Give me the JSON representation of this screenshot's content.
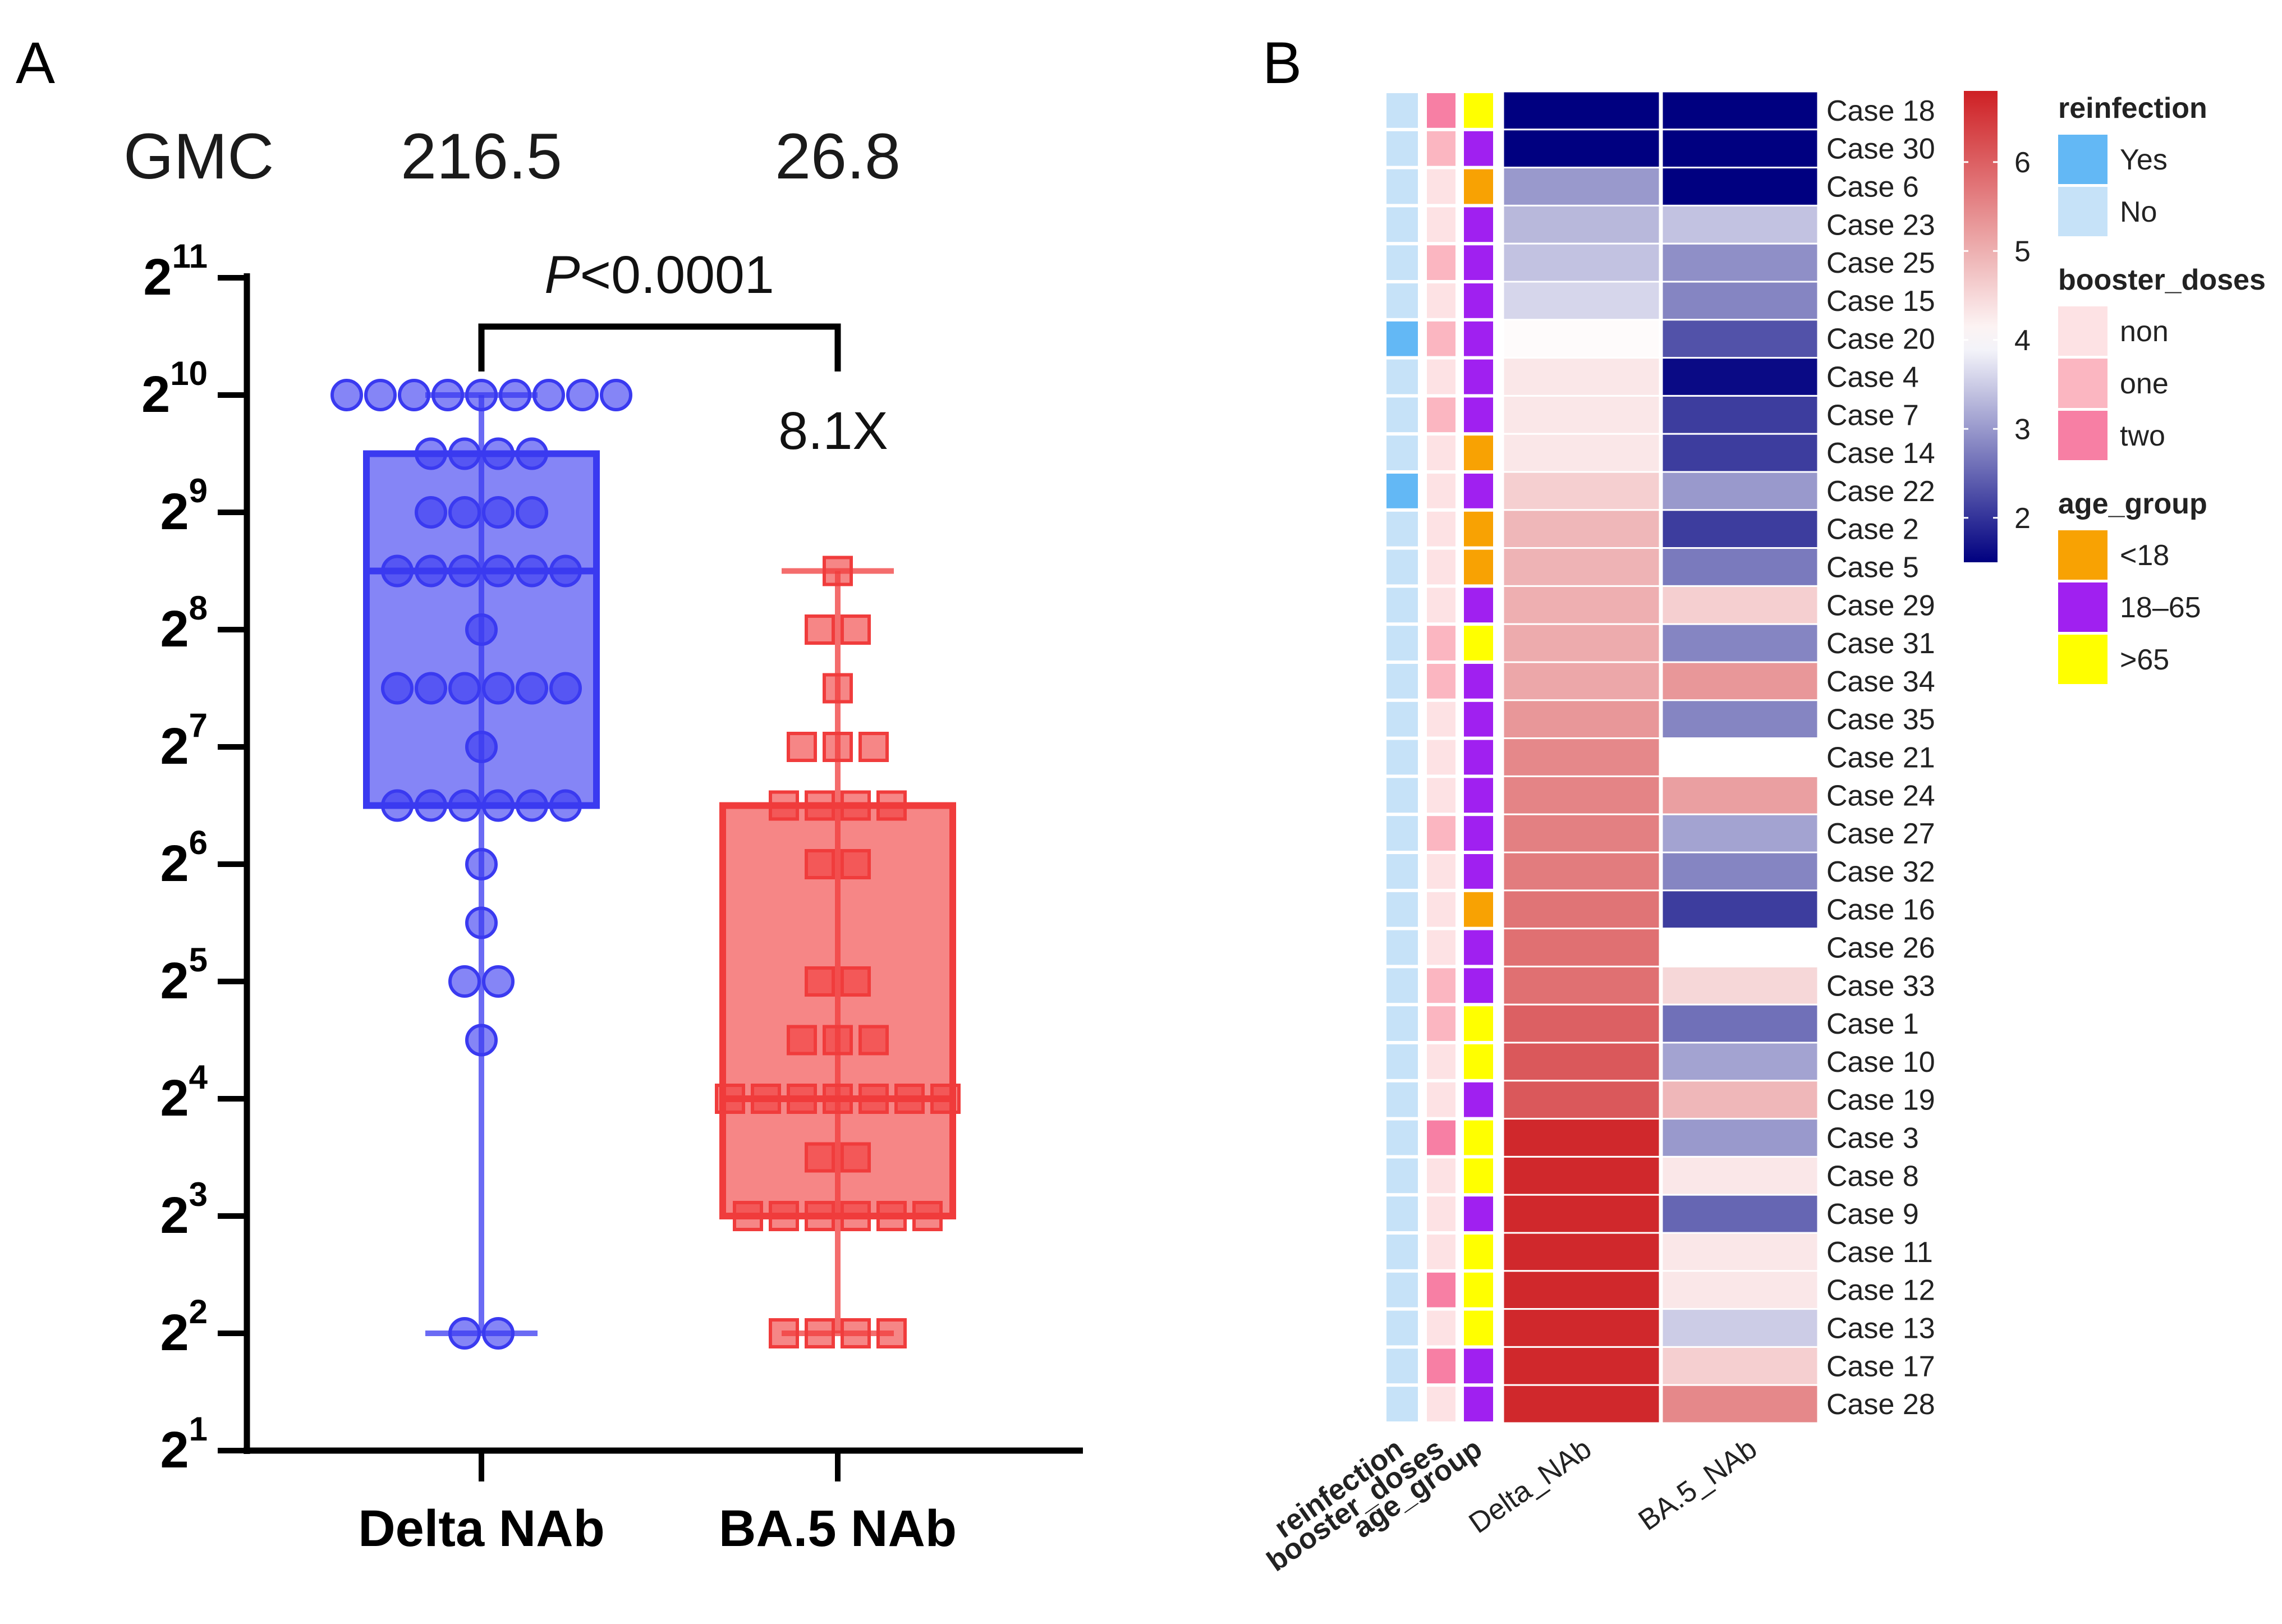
{
  "chart_data": [
    {
      "panel": "A",
      "type": "scatter",
      "subtype": "box-with-points",
      "y_scale": "log2",
      "ylim_exp": [
        1,
        11
      ],
      "y_ticks": [
        {
          "base": "2",
          "exp": "1"
        },
        {
          "base": "2",
          "exp": "2"
        },
        {
          "base": "2",
          "exp": "3"
        },
        {
          "base": "2",
          "exp": "4"
        },
        {
          "base": "2",
          "exp": "5"
        },
        {
          "base": "2",
          "exp": "6"
        },
        {
          "base": "2",
          "exp": "7"
        },
        {
          "base": "2",
          "exp": "8"
        },
        {
          "base": "2",
          "exp": "9"
        },
        {
          "base": "2",
          "exp": "10"
        },
        {
          "base": "2",
          "exp": "11"
        }
      ],
      "gmc_label": "GMC",
      "comparison": {
        "p_italic": "P",
        "p_rest": "<0.0001",
        "fold": "8.1X"
      },
      "series": [
        {
          "name": "Delta NAb",
          "gmc": "216.5",
          "color": "#3a3af0",
          "marker": "circle",
          "box_exp": {
            "min": 2,
            "q1": 6.5,
            "median": 8.5,
            "q3": 9.5,
            "max": 10
          },
          "points_exp": [
            [
              10,
              9
            ],
            [
              9.5,
              4
            ],
            [
              9,
              4
            ],
            [
              8.5,
              6
            ],
            [
              8,
              1
            ],
            [
              7.5,
              6
            ],
            [
              7,
              1
            ],
            [
              6.5,
              6
            ],
            [
              6,
              1
            ],
            [
              5.5,
              1
            ],
            [
              5,
              2
            ],
            [
              4.5,
              1
            ],
            [
              2,
              2
            ]
          ]
        },
        {
          "name": "BA.5 NAb",
          "gmc": "26.8",
          "color": "#f03c3c",
          "marker": "square",
          "box_exp": {
            "min": 2,
            "q1": 3,
            "median": 4,
            "q3": 6.5,
            "max": 8.5
          },
          "points_exp": [
            [
              8.5,
              1
            ],
            [
              8,
              2
            ],
            [
              7.5,
              1
            ],
            [
              7,
              3
            ],
            [
              6.5,
              4
            ],
            [
              6,
              2
            ],
            [
              5,
              2
            ],
            [
              4.5,
              3
            ],
            [
              4,
              7
            ],
            [
              3.5,
              2
            ],
            [
              3,
              6
            ],
            [
              2,
              4
            ]
          ]
        }
      ]
    },
    {
      "panel": "B",
      "type": "heatmap",
      "rows": [
        "Case 18",
        "Case 30",
        "Case 6",
        "Case 23",
        "Case 25",
        "Case 15",
        "Case 20",
        "Case 4",
        "Case 7",
        "Case 14",
        "Case 22",
        "Case 2",
        "Case 5",
        "Case 29",
        "Case 31",
        "Case 34",
        "Case 35",
        "Case 21",
        "Case 24",
        "Case 27",
        "Case 32",
        "Case 16",
        "Case 26",
        "Case 33",
        "Case 1",
        "Case 10",
        "Case 19",
        "Case 3",
        "Case 8",
        "Case 9",
        "Case 11",
        "Case 12",
        "Case 13",
        "Case 17",
        "Case 28"
      ],
      "annotation_columns": [
        "reinfection",
        "booster_doses",
        "age_group"
      ],
      "value_columns": [
        "Delta_NAb",
        "BA.5_NAb"
      ],
      "reinfection": [
        "No",
        "No",
        "No",
        "No",
        "No",
        "No",
        "Yes",
        "No",
        "No",
        "No",
        "Yes",
        "No",
        "No",
        "No",
        "No",
        "No",
        "No",
        "No",
        "No",
        "No",
        "No",
        "No",
        "No",
        "No",
        "No",
        "No",
        "No",
        "No",
        "No",
        "No",
        "No",
        "No",
        "No",
        "No",
        "No"
      ],
      "booster_doses": [
        "two",
        "one",
        "non",
        "non",
        "one",
        "non",
        "one",
        "non",
        "one",
        "non",
        "non",
        "non",
        "non",
        "non",
        "one",
        "one",
        "non",
        "non",
        "non",
        "one",
        "non",
        "non",
        "non",
        "one",
        "one",
        "non",
        "non",
        "two",
        "non",
        "non",
        "non",
        "two",
        "non",
        "two",
        "non"
      ],
      "age_group": [
        "&gt;65",
        "18–65",
        "&lt;18",
        "18–65",
        "18–65",
        "18–65",
        "18–65",
        "18–65",
        "18–65",
        "&lt;18",
        "18–65",
        "&lt;18",
        "&lt;18",
        "18–65",
        "&gt;65",
        "18–65",
        "18–65",
        "18–65",
        "18–65",
        "18–65",
        "18–65",
        "&lt;18",
        "18–65",
        "18–65",
        "&gt;65",
        "&gt;65",
        "18–65",
        "&gt;65",
        "&gt;65",
        "18–65",
        "&gt;65",
        "&gt;65",
        "&gt;65",
        "18–65",
        "18–65"
      ],
      "Delta_NAb": [
        1.5,
        1.5,
        3.0,
        3.3,
        3.4,
        3.6,
        4.05,
        4.3,
        4.3,
        4.3,
        4.6,
        4.9,
        4.95,
        5.0,
        5.05,
        5.1,
        5.3,
        5.5,
        5.55,
        5.6,
        5.65,
        5.75,
        5.8,
        5.8,
        6.0,
        6.1,
        6.1,
        6.7,
        6.7,
        6.7,
        6.7,
        6.7,
        6.7,
        6.7,
        6.7
      ],
      "BA.5_NAb": [
        1.5,
        1.5,
        1.5,
        3.4,
        2.9,
        2.8,
        2.3,
        1.6,
        2.1,
        2.1,
        3.0,
        2.1,
        2.7,
        4.6,
        2.8,
        5.3,
        2.8,
        4.0,
        5.2,
        3.1,
        2.8,
        2.1,
        4.0,
        4.5,
        2.6,
        3.1,
        4.9,
        3.0,
        4.3,
        2.5,
        4.3,
        4.3,
        3.5,
        4.6,
        5.5
      ],
      "colorbar": {
        "ticks": [
          "2",
          "3",
          "4",
          "5",
          "6"
        ],
        "range": [
          1.5,
          6.8
        ]
      },
      "legends": [
        {
          "title": "reinfection",
          "items": [
            {
              "label": "Yes",
              "color": "#63b8f5"
            },
            {
              "label": "No",
              "color": "#c6e2f8"
            }
          ]
        },
        {
          "title": "booster_doses",
          "items": [
            {
              "label": "non",
              "color": "#fde2e4"
            },
            {
              "label": "one",
              "color": "#fbb6c1"
            },
            {
              "label": "two",
              "color": "#f77fa4"
            }
          ]
        },
        {
          "title": "age_group",
          "items": [
            {
              "label": "&lt;18",
              "color": "#f8a203"
            },
            {
              "label": "18–65",
              "color": "#a020f0"
            },
            {
              "label": "&gt;65",
              "color": "#ffff00"
            }
          ]
        }
      ]
    }
  ],
  "panel_labels": {
    "a": "A",
    "b": "B"
  }
}
